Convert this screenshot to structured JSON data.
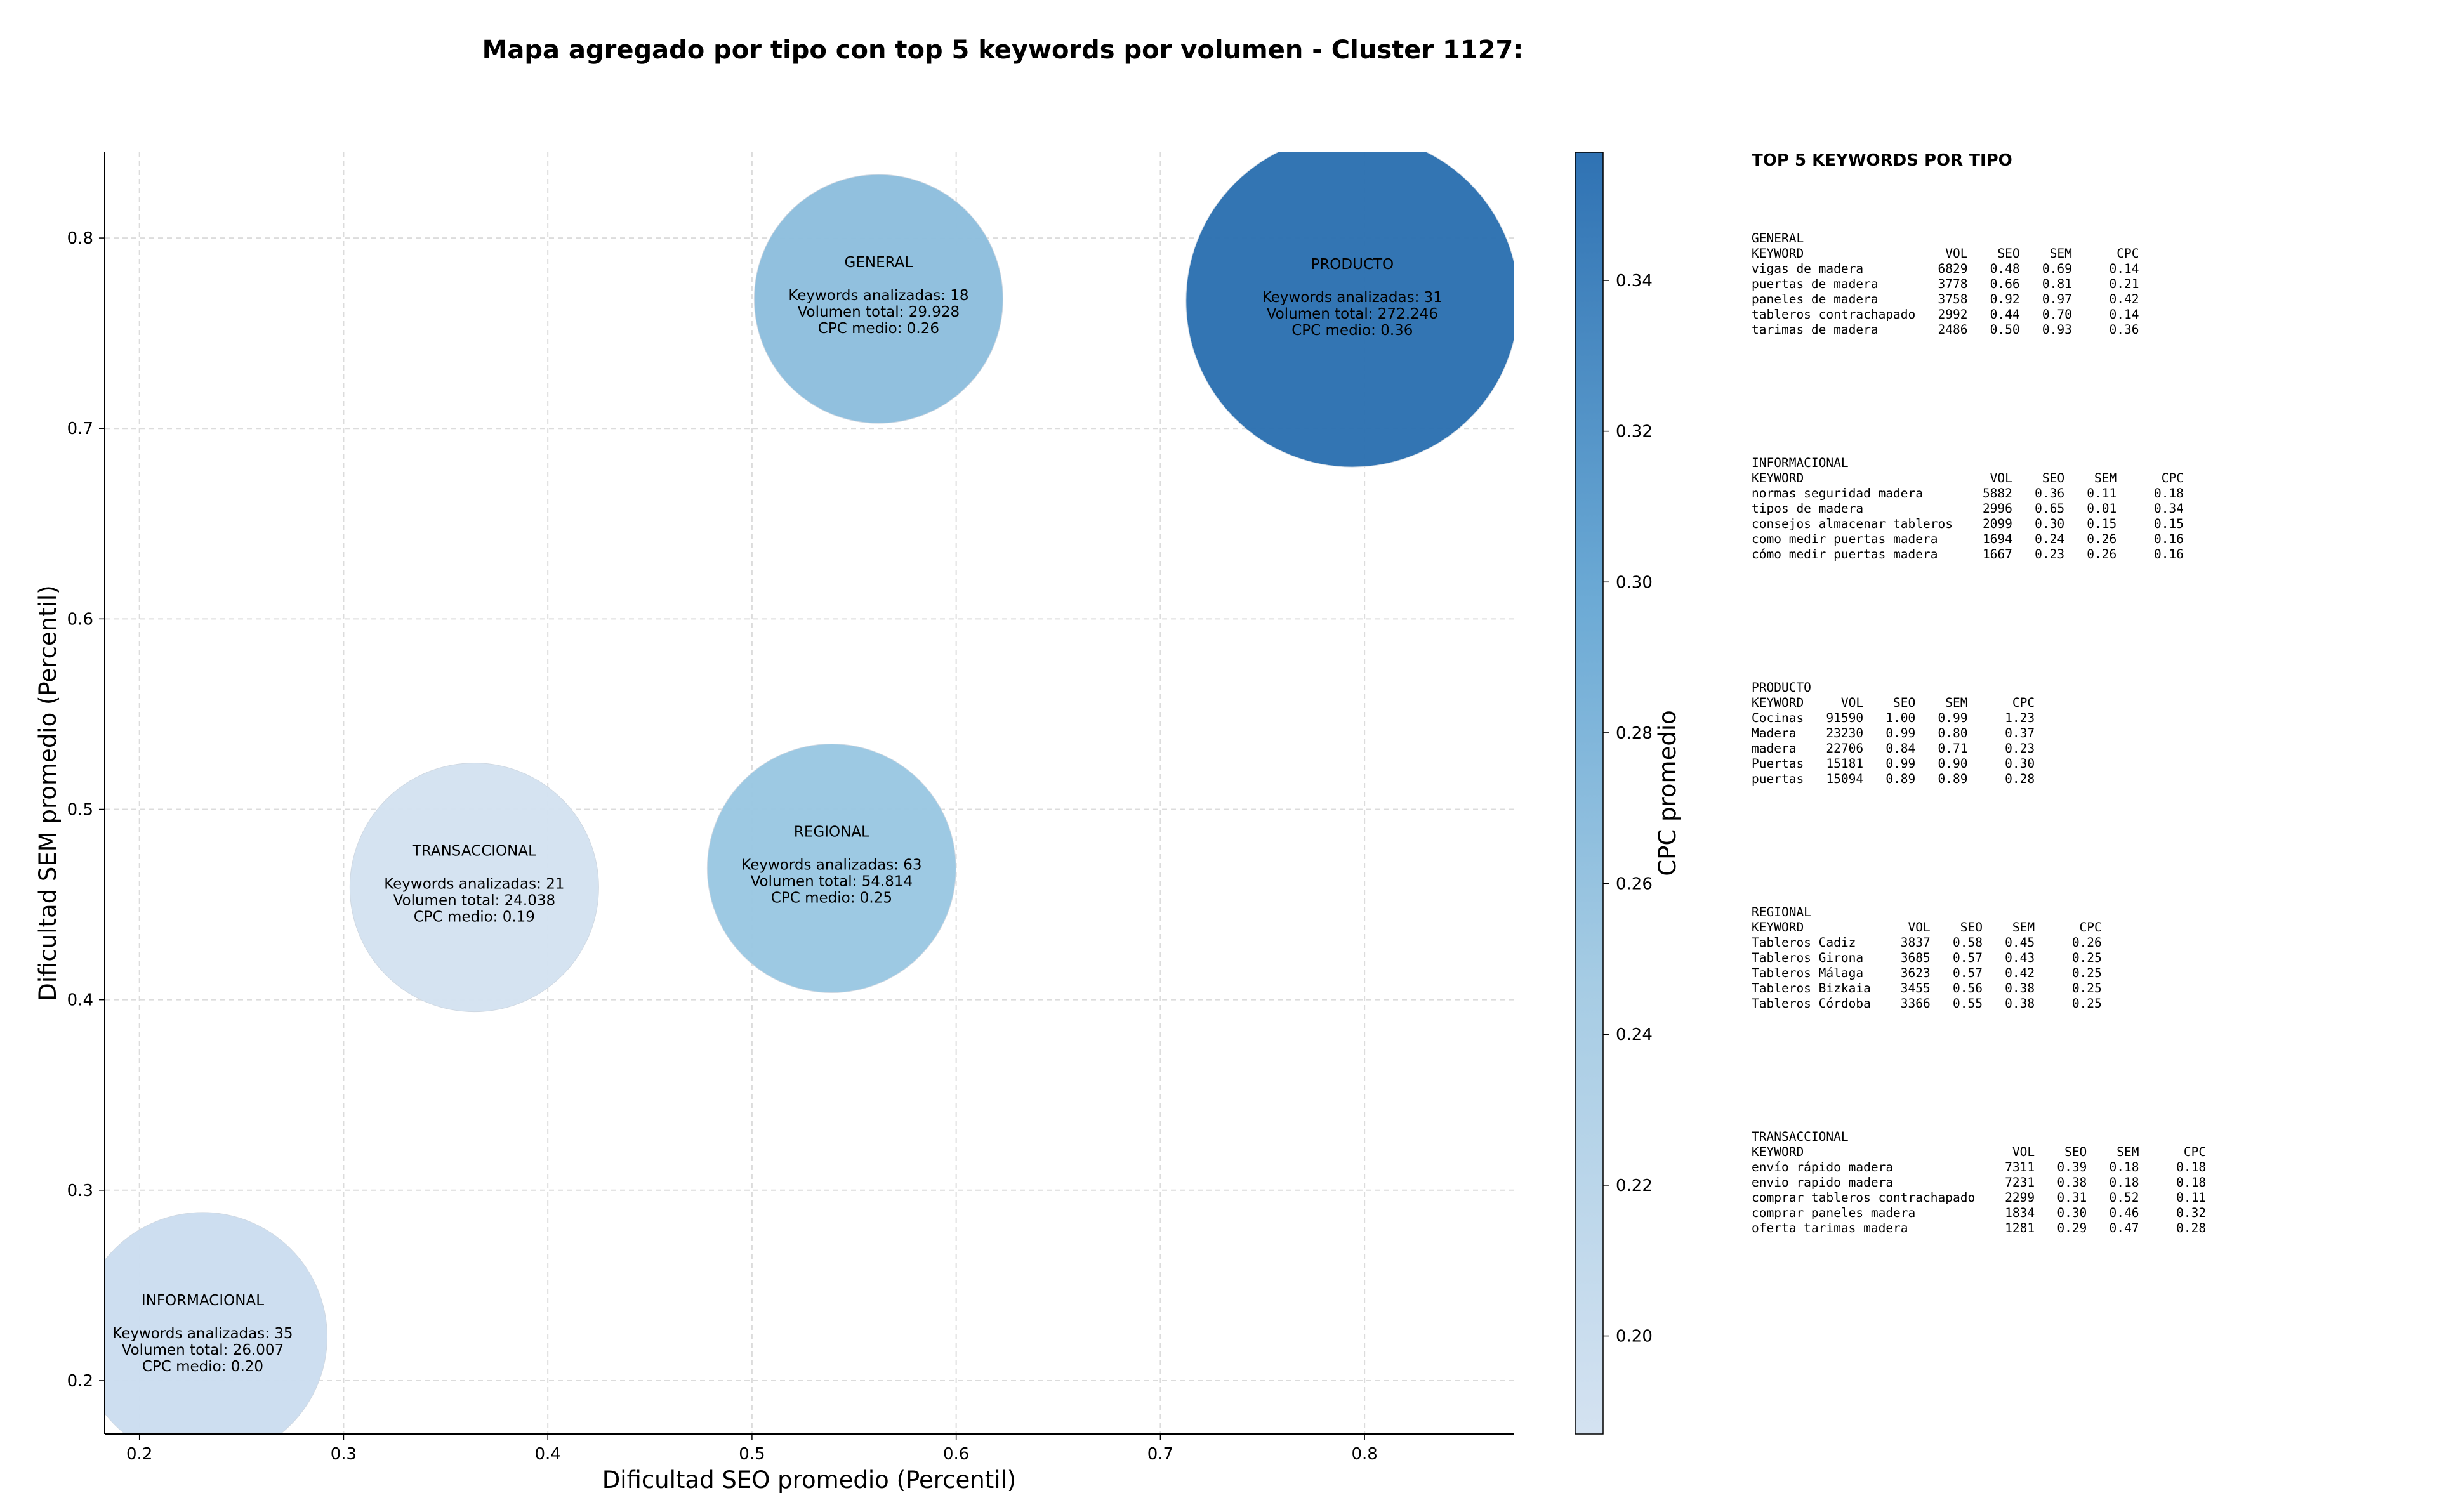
{
  "chart_data": {
    "type": "scatter",
    "title": "Mapa agregado por tipo con top 5 keywords por volumen - Cluster 1127:",
    "xlabel": "Dificultad SEO promedio (Percentil)",
    "ylabel": "Dificultad SEM promedio (Percentil)",
    "xlim": [
      0.183,
      0.873
    ],
    "ylim": [
      0.172,
      0.845
    ],
    "xticks": [
      "0.2",
      "0.3",
      "0.4",
      "0.5",
      "0.6",
      "0.7",
      "0.8"
    ],
    "yticks": [
      "0.2",
      "0.3",
      "0.4",
      "0.5",
      "0.6",
      "0.7",
      "0.8"
    ],
    "grid": true,
    "colorbar": {
      "label": "CPC promedio",
      "range": [
        0.187,
        0.357
      ],
      "ticks": [
        "0.20",
        "0.22",
        "0.24",
        "0.26",
        "0.28",
        "0.30",
        "0.32",
        "0.34"
      ],
      "color_low": "#cfdff0",
      "color_high": "#2f72b3"
    },
    "points": [
      {
        "tipo": "GENERAL",
        "x": 0.562,
        "y": 0.768,
        "keywords": 18,
        "volumen": 29928,
        "cpc": 0.26,
        "lines": [
          "Keywords analizadas: 18",
          "Volumen total: 29.928",
          "CPC medio: 0.26"
        ],
        "color": "#8dbedd"
      },
      {
        "tipo": "PRODUCTO",
        "x": 0.794,
        "y": 0.767,
        "keywords": 31,
        "volumen": 272246,
        "cpc": 0.36,
        "lines": [
          "Keywords analizadas: 31",
          "Volumen total: 272.246",
          "CPC medio: 0.36"
        ],
        "color": "#2c71b1"
      },
      {
        "tipo": "TRANSACCIONAL",
        "x": 0.364,
        "y": 0.459,
        "keywords": 21,
        "volumen": 24038,
        "cpc": 0.19,
        "lines": [
          "Keywords analizadas: 21",
          "Volumen total: 24.038",
          "CPC medio: 0.19"
        ],
        "color": "#d4e2f1"
      },
      {
        "tipo": "REGIONAL",
        "x": 0.539,
        "y": 0.469,
        "keywords": 63,
        "volumen": 54814,
        "cpc": 0.25,
        "lines": [
          "Keywords analizadas: 63",
          "Volumen total: 54.814",
          "CPC medio: 0.25"
        ],
        "color": "#9ac7e2"
      },
      {
        "tipo": "INFORMACIONAL",
        "x": 0.231,
        "y": 0.223,
        "keywords": 35,
        "volumen": 26007,
        "cpc": 0.2,
        "lines": [
          "Keywords analizadas: 35",
          "Volumen total: 26.007",
          "CPC medio: 0.20"
        ],
        "color": "#cbddef"
      }
    ]
  },
  "top5": {
    "heading": "TOP 5 KEYWORDS POR TIPO",
    "blocks": [
      {
        "tipo": "GENERAL",
        "header": "KEYWORD                   VOL    SEO    SEM      CPC",
        "rows": [
          "vigas de madera          6829   0.48   0.69     0.14",
          "puertas de madera        3778   0.66   0.81     0.21",
          "paneles de madera        3758   0.92   0.97     0.42",
          "tableros contrachapado   2992   0.44   0.70     0.14",
          "tarimas de madera        2486   0.50   0.93     0.36"
        ]
      },
      {
        "tipo": "INFORMACIONAL",
        "header": "KEYWORD                         VOL    SEO    SEM      CPC",
        "rows": [
          "normas seguridad madera        5882   0.36   0.11     0.18",
          "tipos de madera                2996   0.65   0.01     0.34",
          "consejos almacenar tableros    2099   0.30   0.15     0.15",
          "como medir puertas madera      1694   0.24   0.26     0.16",
          "cómo medir puertas madera      1667   0.23   0.26     0.16"
        ]
      },
      {
        "tipo": "PRODUCTO",
        "header": "KEYWORD     VOL    SEO    SEM      CPC",
        "rows": [
          "Cocinas   91590   1.00   0.99     1.23",
          "Madera    23230   0.99   0.80     0.37",
          "madera    22706   0.84   0.71     0.23",
          "Puertas   15181   0.99   0.90     0.30",
          "puertas   15094   0.89   0.89     0.28"
        ]
      },
      {
        "tipo": "REGIONAL",
        "header": "KEYWORD              VOL    SEO    SEM      CPC",
        "rows": [
          "Tableros Cadiz      3837   0.58   0.45     0.26",
          "Tableros Girona     3685   0.57   0.43     0.25",
          "Tableros Málaga     3623   0.57   0.42     0.25",
          "Tableros Bizkaia    3455   0.56   0.38     0.25",
          "Tableros Córdoba    3366   0.55   0.38     0.25"
        ]
      },
      {
        "tipo": "TRANSACCIONAL",
        "header": "KEYWORD                            VOL    SEO    SEM      CPC",
        "rows": [
          "envío rápido madera               7311   0.39   0.18     0.18",
          "envio rapido madera               7231   0.38   0.18     0.18",
          "comprar tableros contrachapado    2299   0.31   0.52     0.11",
          "comprar paneles madera            1834   0.30   0.46     0.32",
          "oferta tarimas madera             1281   0.29   0.47     0.28"
        ]
      }
    ]
  }
}
